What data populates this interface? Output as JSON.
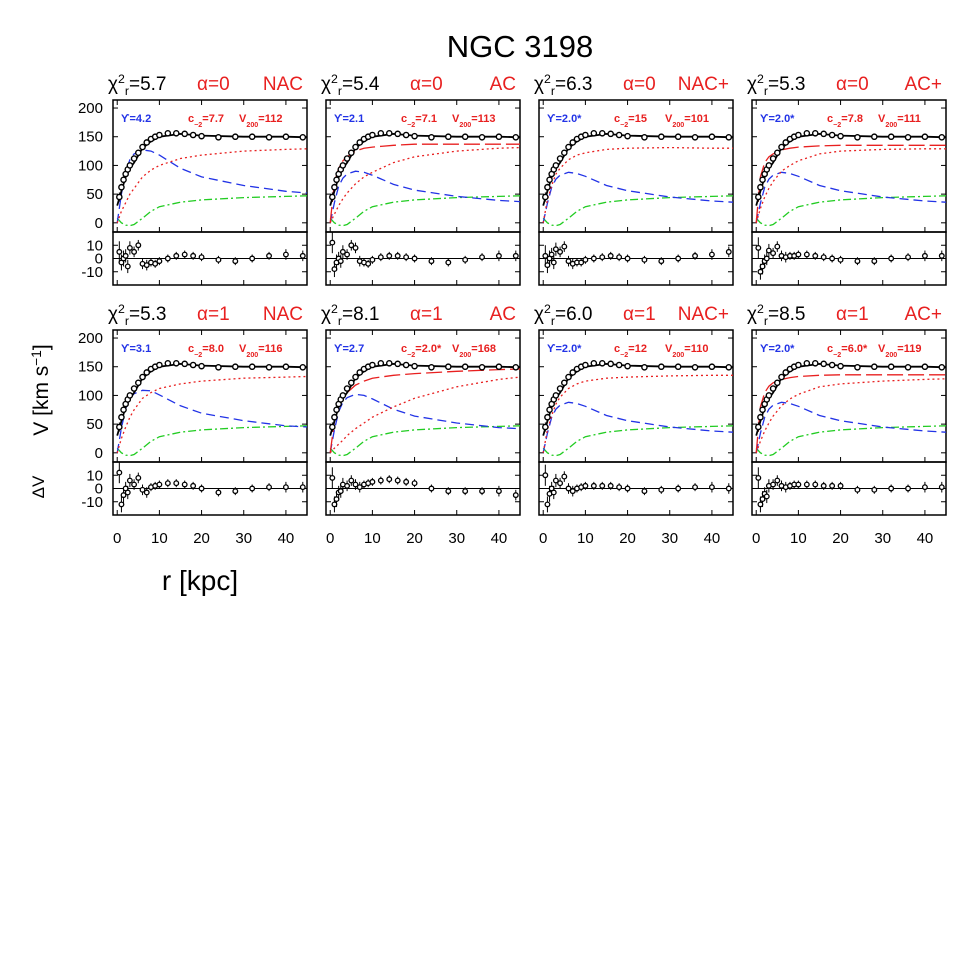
{
  "chart_data": {
    "type": "line",
    "title": "NGC 3198",
    "x_label": "r [kpc]",
    "y_label": "V [km s",
    "y_label_sup": "−1",
    "y_label_end": "]",
    "residual_label": "ΔV",
    "chi_symbol": "χ",
    "chi_sup": "2",
    "chi_sub": "r",
    "c_symbol": "c",
    "c_sub": "−2",
    "v_symbol": "V",
    "v_sub": "200",
    "xlim": [
      -1,
      45
    ],
    "xticks": [
      0,
      10,
      20,
      30,
      40
    ],
    "ylim": [
      -16,
      214
    ],
    "yticks": [
      0,
      50,
      100,
      150,
      200
    ],
    "residual_ylim": [
      -20,
      20
    ],
    "residual_yticks": [
      -10,
      0,
      10
    ],
    "colors": {
      "points": "#000000",
      "total": "#000000",
      "disk": "#2233e6",
      "gas": "#22cc22",
      "halo": "#e82020",
      "halo_contracted": "#e82020"
    },
    "obs_r": [
      0.5,
      1,
      1.5,
      2,
      2.5,
      3,
      4,
      5,
      6,
      7,
      8,
      9,
      10,
      12,
      14,
      16,
      18,
      20,
      24,
      28,
      32,
      36,
      40,
      44
    ],
    "obs_v": [
      45,
      62,
      75,
      85,
      93,
      100,
      112,
      122,
      132,
      140,
      146,
      150,
      153,
      156,
      156,
      155,
      153,
      151,
      149,
      150,
      150,
      149,
      150,
      149
    ],
    "obs_err": [
      8,
      6,
      6,
      5,
      5,
      5,
      4,
      4,
      4,
      4,
      3,
      3,
      3,
      3,
      3,
      3,
      3,
      3,
      3,
      3,
      3,
      3,
      4,
      4
    ],
    "curve_r": [
      0,
      1,
      2,
      3,
      4,
      6,
      8,
      10,
      15,
      20,
      30,
      40,
      45
    ],
    "panels": [
      {
        "chi2": "=5.7",
        "alpha": "α=0",
        "model": "NAC",
        "upsilon": "ϒ=4.2",
        "c_value": "=7.7",
        "v_value": "=112",
        "total": [
          30,
          55,
          80,
          95,
          105,
          130,
          142,
          150,
          155,
          152,
          150,
          150,
          149
        ],
        "disk": [
          0,
          50,
          90,
          110,
          120,
          127,
          125,
          118,
          95,
          80,
          65,
          55,
          52
        ],
        "gas": [
          8,
          0,
          -4,
          -5,
          -3,
          8,
          20,
          28,
          36,
          40,
          44,
          46,
          47
        ],
        "halo": [
          0,
          20,
          35,
          50,
          60,
          80,
          92,
          100,
          112,
          118,
          125,
          128,
          129
        ],
        "residuals": [
          5,
          -3,
          0,
          2,
          -6,
          8,
          5,
          10,
          -4,
          -5,
          -3,
          -4,
          -2,
          0,
          2,
          3,
          2,
          1,
          -1,
          -2,
          0,
          2,
          3,
          2
        ]
      },
      {
        "chi2": "=5.4",
        "alpha": "α=0",
        "model": "AC",
        "upsilon": "ϒ=2.1",
        "c_value": "=7.1",
        "v_value": "=113",
        "total": [
          30,
          55,
          80,
          95,
          105,
          130,
          142,
          150,
          155,
          152,
          150,
          150,
          149
        ],
        "disk": [
          0,
          35,
          64,
          78,
          85,
          90,
          88,
          83,
          67,
          57,
          46,
          39,
          37
        ],
        "gas": [
          8,
          0,
          -4,
          -5,
          -3,
          8,
          20,
          28,
          36,
          40,
          44,
          46,
          47
        ],
        "halo": [
          0,
          15,
          30,
          42,
          52,
          68,
          80,
          88,
          105,
          115,
          125,
          130,
          131
        ],
        "halo_contracted": [
          0,
          70,
          95,
          108,
          115,
          125,
          130,
          132,
          135,
          137,
          137,
          137,
          137
        ],
        "residuals": [
          12,
          -8,
          -3,
          0,
          -2,
          5,
          3,
          10,
          8,
          -2,
          -3,
          -4,
          -1,
          1,
          2,
          2,
          1,
          0,
          -2,
          -3,
          -1,
          1,
          2,
          2
        ]
      },
      {
        "chi2": "=6.3",
        "alpha": "α=0",
        "model": "NAC+",
        "upsilon": "ϒ=2.0*",
        "c_value": "=15",
        "v_value": "=101",
        "total": [
          30,
          55,
          80,
          95,
          105,
          130,
          142,
          150,
          155,
          152,
          150,
          150,
          149
        ],
        "disk": [
          0,
          34,
          62,
          76,
          83,
          88,
          86,
          81,
          65,
          56,
          45,
          38,
          36
        ],
        "gas": [
          8,
          0,
          -4,
          -5,
          -3,
          8,
          20,
          28,
          36,
          40,
          44,
          46,
          47
        ],
        "halo": [
          0,
          40,
          65,
          85,
          95,
          110,
          118,
          122,
          128,
          130,
          131,
          130,
          130
        ],
        "residuals": [
          2,
          -5,
          0,
          3,
          -3,
          7,
          5,
          9,
          -2,
          -4,
          -3,
          -3,
          -1,
          0,
          1,
          2,
          1,
          0,
          -1,
          -2,
          0,
          2,
          3,
          5
        ]
      },
      {
        "chi2": "=5.3",
        "alpha": "α=0",
        "model": "AC+",
        "upsilon": "ϒ=2.0*",
        "c_value": "=7.8",
        "v_value": "=111",
        "total": [
          30,
          55,
          80,
          95,
          105,
          130,
          142,
          150,
          155,
          152,
          150,
          150,
          149
        ],
        "disk": [
          0,
          34,
          62,
          76,
          83,
          88,
          86,
          81,
          65,
          56,
          45,
          38,
          36
        ],
        "gas": [
          8,
          0,
          -4,
          -5,
          -3,
          8,
          20,
          28,
          36,
          40,
          44,
          46,
          47
        ],
        "halo": [
          0,
          25,
          45,
          60,
          72,
          90,
          100,
          108,
          120,
          125,
          128,
          129,
          129
        ],
        "halo_contracted": [
          0,
          80,
          105,
          115,
          120,
          127,
          130,
          132,
          134,
          135,
          135,
          135,
          135
        ],
        "residuals": [
          8,
          -10,
          -6,
          -2,
          0,
          6,
          4,
          9,
          2,
          1,
          2,
          2,
          3,
          3,
          2,
          1,
          0,
          -1,
          -2,
          -2,
          0,
          1,
          2,
          2
        ]
      },
      {
        "chi2": "=5.3",
        "alpha": "α=1",
        "model": "NAC",
        "upsilon": "ϒ=3.1",
        "c_value": "=8.0",
        "v_value": "=116",
        "total": [
          30,
          55,
          80,
          95,
          105,
          130,
          142,
          150,
          155,
          152,
          150,
          150,
          149
        ],
        "disk": [
          0,
          43,
          77,
          95,
          103,
          109,
          108,
          101,
          82,
          69,
          56,
          47,
          45
        ],
        "gas": [
          8,
          0,
          -4,
          -5,
          -3,
          8,
          20,
          28,
          36,
          40,
          44,
          46,
          47
        ],
        "halo": [
          0,
          25,
          45,
          62,
          75,
          95,
          105,
          112,
          120,
          125,
          130,
          132,
          133
        ],
        "residuals": [
          12,
          -12,
          -5,
          0,
          -3,
          6,
          3,
          8,
          -1,
          -3,
          1,
          2,
          3,
          4,
          4,
          3,
          2,
          0,
          -3,
          -2,
          0,
          1,
          1,
          1
        ]
      },
      {
        "chi2": "=8.1",
        "alpha": "α=1",
        "model": "AC",
        "upsilon": "ϒ=2.7",
        "c_value": "=2.0*",
        "v_value": "=168",
        "total": [
          30,
          55,
          80,
          95,
          105,
          130,
          142,
          150,
          155,
          152,
          150,
          150,
          149
        ],
        "disk": [
          0,
          40,
          72,
          88,
          96,
          102,
          100,
          94,
          76,
          64,
          52,
          44,
          42
        ],
        "gas": [
          8,
          0,
          -4,
          -5,
          -3,
          8,
          20,
          28,
          36,
          40,
          44,
          46,
          47
        ],
        "halo": [
          0,
          8,
          15,
          22,
          30,
          42,
          52,
          62,
          80,
          95,
          115,
          128,
          132
        ],
        "halo_contracted": [
          0,
          55,
          80,
          95,
          105,
          118,
          125,
          130,
          135,
          138,
          142,
          145,
          146
        ],
        "residuals": [
          8,
          -12,
          -8,
          -3,
          -2,
          3,
          2,
          6,
          3,
          1,
          3,
          4,
          5,
          6,
          7,
          6,
          5,
          4,
          0,
          -2,
          -2,
          -2,
          -2,
          -5
        ]
      },
      {
        "chi2": "=6.0",
        "alpha": "α=1",
        "model": "NAC+",
        "upsilon": "ϒ=2.0*",
        "c_value": "=12",
        "v_value": "=110",
        "total": [
          30,
          55,
          80,
          95,
          105,
          130,
          142,
          150,
          155,
          152,
          150,
          150,
          149
        ],
        "disk": [
          0,
          34,
          62,
          76,
          83,
          88,
          86,
          81,
          65,
          56,
          45,
          38,
          36
        ],
        "gas": [
          8,
          0,
          -4,
          -5,
          -3,
          8,
          20,
          28,
          36,
          40,
          44,
          46,
          47
        ],
        "halo": [
          0,
          40,
          65,
          85,
          97,
          112,
          120,
          125,
          130,
          132,
          134,
          135,
          135
        ],
        "residuals": [
          10,
          -12,
          -4,
          0,
          -3,
          6,
          4,
          9,
          0,
          -2,
          0,
          1,
          2,
          2,
          2,
          2,
          1,
          0,
          -2,
          -1,
          0,
          1,
          1,
          0
        ]
      },
      {
        "chi2": "=8.5",
        "alpha": "α=1",
        "model": "AC+",
        "upsilon": "ϒ=2.0*",
        "c_value": "=6.0*",
        "v_value": "=119",
        "total": [
          30,
          55,
          80,
          95,
          105,
          130,
          142,
          150,
          155,
          152,
          150,
          150,
          149
        ],
        "disk": [
          0,
          34,
          62,
          76,
          83,
          88,
          86,
          81,
          65,
          56,
          45,
          38,
          36
        ],
        "gas": [
          8,
          0,
          -4,
          -5,
          -3,
          8,
          20,
          28,
          36,
          40,
          44,
          46,
          47
        ],
        "halo": [
          0,
          20,
          38,
          52,
          64,
          82,
          94,
          102,
          115,
          120,
          125,
          128,
          129
        ],
        "halo_contracted": [
          0,
          80,
          105,
          116,
          122,
          128,
          131,
          133,
          135,
          136,
          136,
          136,
          136
        ],
        "residuals": [
          8,
          -12,
          -8,
          -4,
          -6,
          2,
          3,
          6,
          2,
          1,
          2,
          3,
          3,
          3,
          3,
          2,
          2,
          2,
          -1,
          -1,
          0,
          0,
          1,
          1
        ]
      }
    ]
  }
}
